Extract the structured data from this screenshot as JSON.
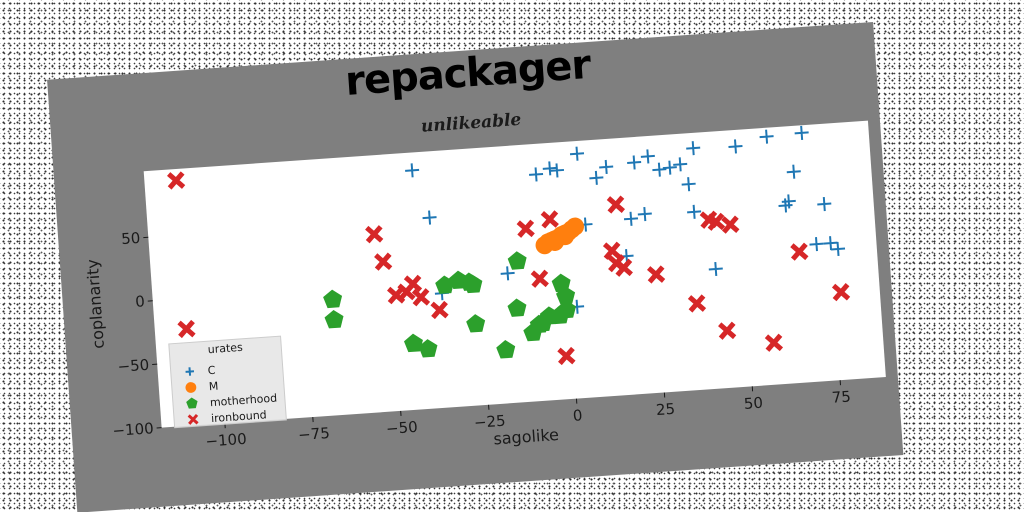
{
  "chart_data": {
    "type": "scatter",
    "title": "repackager",
    "subtitle": "unlikeable",
    "xlabel": "sagolike",
    "ylabel": "coplanarity",
    "xlim": [
      -118,
      88
    ],
    "ylim": [
      -100,
      102
    ],
    "xticks": [
      -100,
      -75,
      -50,
      -25,
      0,
      25,
      50,
      75
    ],
    "yticks": [
      -100,
      -50,
      0,
      50
    ],
    "grid": false,
    "legend": {
      "title": "urates",
      "placement": "bottom-left"
    },
    "series": [
      {
        "name": "C",
        "marker": "plus",
        "color": "#1f77b4",
        "points": [
          [
            -42,
            88
          ],
          [
            -38,
            50
          ],
          [
            -36,
            -10
          ],
          [
            -17,
            2
          ],
          [
            -7,
            78
          ],
          [
            -3,
            82
          ],
          [
            -1,
            80
          ],
          [
            2,
            -28
          ],
          [
            5,
            92
          ],
          [
            6,
            36
          ],
          [
            10,
            72
          ],
          [
            13,
            80
          ],
          [
            17,
            9
          ],
          [
            19,
            38
          ],
          [
            21,
            82
          ],
          [
            23,
            41
          ],
          [
            25,
            86
          ],
          [
            28,
            75
          ],
          [
            31,
            76
          ],
          [
            34,
            78
          ],
          [
            36,
            62
          ],
          [
            37,
            40
          ],
          [
            38,
            90
          ],
          [
            42,
            -6
          ],
          [
            50,
            89
          ],
          [
            59,
            95
          ],
          [
            63,
            40
          ],
          [
            64,
            43
          ],
          [
            66,
            66
          ],
          [
            69,
            96
          ],
          [
            71,
            8
          ],
          [
            74,
            39
          ],
          [
            75,
            8
          ],
          [
            77,
            3
          ]
        ]
      },
      {
        "name": "M",
        "marker": "circle",
        "color": "#ff7f0e",
        "points": [
          [
            -6,
            22
          ],
          [
            -5,
            24
          ],
          [
            -4,
            25
          ],
          [
            -3,
            26
          ],
          [
            -2,
            27
          ],
          [
            -1,
            29
          ],
          [
            0,
            30
          ],
          [
            1,
            31
          ],
          [
            2,
            33
          ],
          [
            3,
            35
          ],
          [
            0,
            28
          ],
          [
            -3,
            24
          ]
        ]
      },
      {
        "name": "motherhood",
        "marker": "pentagon",
        "color": "#2ca02c",
        "points": [
          [
            -67,
            -9
          ],
          [
            -67,
            -25
          ],
          [
            -45,
            -48
          ],
          [
            -41,
            -53
          ],
          [
            -35,
            -4
          ],
          [
            -31,
            -1
          ],
          [
            -28,
            -3
          ],
          [
            -27,
            -5
          ],
          [
            -27,
            -36
          ],
          [
            -19,
            -58
          ],
          [
            -15,
            -26
          ],
          [
            -14,
            11
          ],
          [
            -11,
            -46
          ],
          [
            -9,
            -40
          ],
          [
            -8,
            -39
          ],
          [
            -6,
            -34
          ],
          [
            -3,
            -34
          ],
          [
            -2,
            -9
          ],
          [
            -1,
            -19
          ],
          [
            -1,
            -30
          ]
        ]
      },
      {
        "name": "ironbound",
        "marker": "x",
        "color": "#d62728",
        "points": [
          [
            -109,
            93
          ],
          [
            -109,
            -24
          ],
          [
            -54,
            40
          ],
          [
            -52,
            18
          ],
          [
            -49,
            -9
          ],
          [
            -46,
            -7
          ],
          [
            -44,
            -1
          ],
          [
            -42,
            -12
          ],
          [
            -37,
            -23
          ],
          [
            -11,
            36
          ],
          [
            -8,
            -4
          ],
          [
            -4,
            42
          ],
          [
            -2,
            -66
          ],
          [
            13,
            14
          ],
          [
            14,
            4
          ],
          [
            15,
            50
          ],
          [
            16,
            0
          ],
          [
            25,
            -7
          ],
          [
            36,
            -32
          ],
          [
            41,
            33
          ],
          [
            43,
            31
          ],
          [
            44,
            -55
          ],
          [
            47,
            28
          ],
          [
            57,
            -67
          ],
          [
            66,
            3
          ],
          [
            77,
            -31
          ]
        ]
      }
    ]
  }
}
